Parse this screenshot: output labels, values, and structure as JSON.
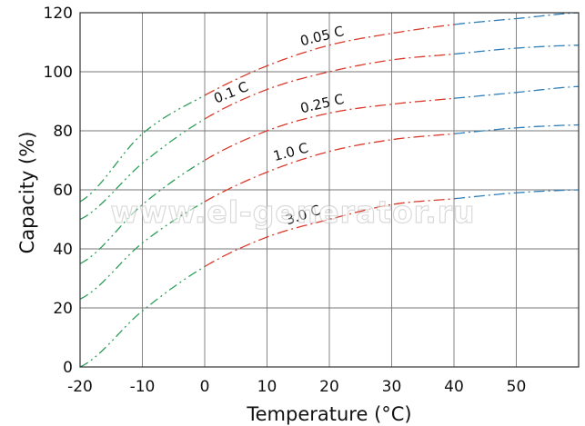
{
  "chart_data": {
    "type": "line",
    "xlabel": "Temperature (°C)",
    "ylabel": "Capacity (%)",
    "xlim": [
      -20,
      60
    ],
    "ylim": [
      0,
      120
    ],
    "x_ticks": [
      -20,
      -10,
      0,
      10,
      20,
      30,
      40,
      50
    ],
    "y_ticks": [
      0,
      20,
      40,
      60,
      80,
      100,
      120
    ],
    "grid": true,
    "watermark": "www.el-generator.ru",
    "segment_colors": {
      "low": "#2e9e5a",
      "mid": "#d93a2b",
      "high": "#2f7fb8"
    },
    "series": [
      {
        "name": "0.05 C",
        "x": [
          -20,
          -10,
          0,
          10,
          20,
          30,
          40,
          50,
          60
        ],
        "values": [
          56,
          79,
          92,
          102,
          109,
          113,
          116,
          118,
          120
        ]
      },
      {
        "name": "0.1 C",
        "x": [
          -20,
          -10,
          0,
          10,
          20,
          30,
          40,
          50,
          60
        ],
        "values": [
          50,
          69,
          84,
          94,
          100,
          104,
          106,
          108,
          109
        ]
      },
      {
        "name": "0.25 C",
        "x": [
          -20,
          -10,
          0,
          10,
          20,
          30,
          40,
          50,
          60
        ],
        "values": [
          35,
          55,
          70,
          80,
          86,
          89,
          91,
          93,
          95
        ]
      },
      {
        "name": "1.0 C",
        "x": [
          -20,
          -10,
          0,
          10,
          20,
          30,
          40,
          50,
          60
        ],
        "values": [
          23,
          42,
          56,
          66,
          73,
          77,
          79,
          81,
          82
        ]
      },
      {
        "name": "3.0 C",
        "x": [
          -20,
          -10,
          0,
          10,
          20,
          30,
          40,
          50,
          60
        ],
        "values": [
          0,
          19,
          34,
          44,
          50,
          55,
          57,
          59,
          60
        ]
      }
    ]
  }
}
